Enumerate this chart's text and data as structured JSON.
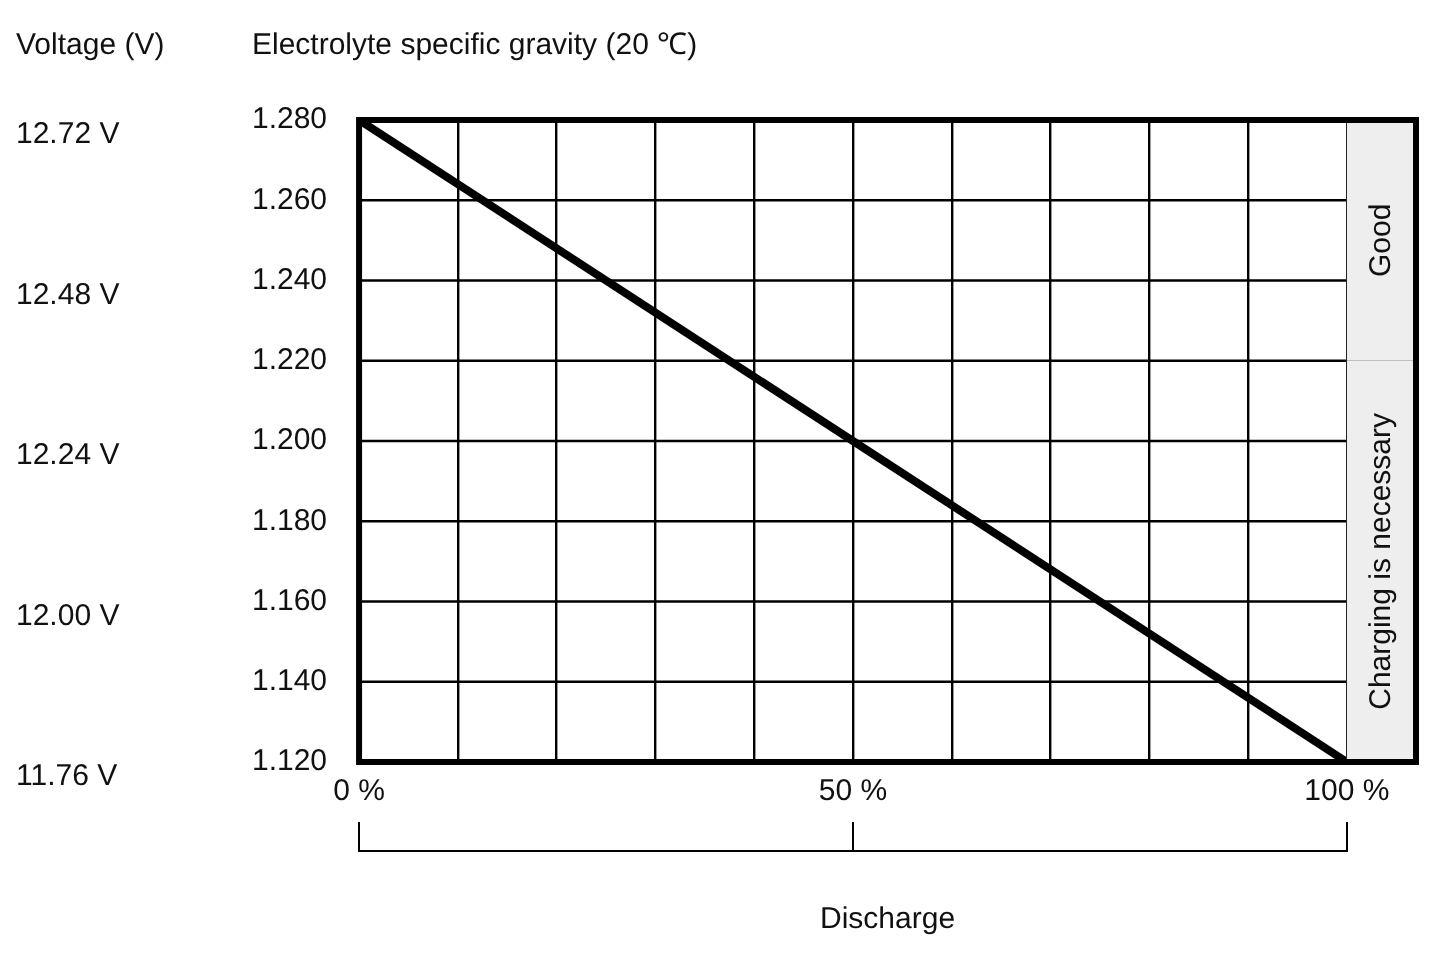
{
  "chart_data": {
    "type": "line",
    "ylabel": "Electrolyte specific gravity (20 ℃)",
    "y2label": "Voltage (V)",
    "xlabel": "Discharge",
    "xlim": [
      0,
      107
    ],
    "xticks": [
      {
        "value": 0,
        "label": "0 %"
      },
      {
        "value": 10,
        "label": null
      },
      {
        "value": 20,
        "label": null
      },
      {
        "value": 30,
        "label": null
      },
      {
        "value": 40,
        "label": null
      },
      {
        "value": 50,
        "label": "50 %"
      },
      {
        "value": 60,
        "label": null
      },
      {
        "value": 70,
        "label": null
      },
      {
        "value": 80,
        "label": null
      },
      {
        "value": 90,
        "label": null
      },
      {
        "value": 100,
        "label": "100 %"
      }
    ],
    "ylim": [
      1.12,
      1.28
    ],
    "yticks": [
      {
        "value": 1.12,
        "label": "1.120"
      },
      {
        "value": 1.14,
        "label": "1.140"
      },
      {
        "value": 1.16,
        "label": "1.160"
      },
      {
        "value": 1.18,
        "label": "1.180"
      },
      {
        "value": 1.2,
        "label": "1.200"
      },
      {
        "value": 1.22,
        "label": "1.220"
      },
      {
        "value": 1.24,
        "label": "1.240"
      },
      {
        "value": 1.26,
        "label": "1.260"
      },
      {
        "value": 1.28,
        "label": "1.280"
      }
    ],
    "y2lim": [
      11.76,
      12.72
    ],
    "y2ticks": [
      {
        "value": 11.76,
        "label": "11.76 V"
      },
      {
        "value": 12.0,
        "label": "12.00 V"
      },
      {
        "value": 12.24,
        "label": "12.24 V"
      },
      {
        "value": 12.48,
        "label": "12.48 V"
      },
      {
        "value": 12.72,
        "label": "12.72 V"
      }
    ],
    "series": [
      {
        "color": "#000000",
        "x": [
          0,
          100
        ],
        "values": [
          1.28,
          1.12
        ]
      }
    ],
    "bands": [
      {
        "axis": "y",
        "from": 1.22,
        "to": 1.28,
        "label": "Good",
        "color": "#eeeeee"
      },
      {
        "axis": "y",
        "from": 1.12,
        "to": 1.22,
        "label": "Charging is necessary",
        "color": "#eeeeee"
      }
    ],
    "grid": true,
    "legend": false,
    "marker": "none",
    "line_style": "solid"
  }
}
